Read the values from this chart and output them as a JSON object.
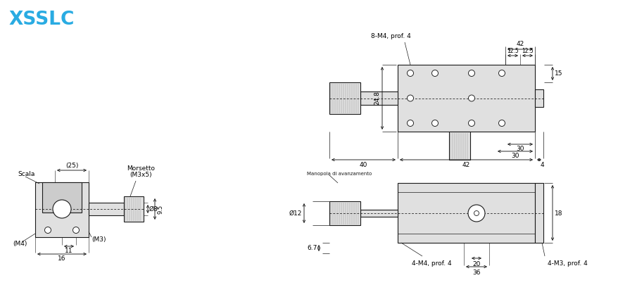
{
  "title": "XSSLC",
  "title_color": "#29ABE2",
  "bg_color": "#ffffff",
  "line_color": "#1a1a1a",
  "fill_light": "#e0e0e0",
  "fill_mid": "#cccccc",
  "annotations": {
    "top_label": "8-M4, prof. 4",
    "dim_42_top": "42",
    "dim_12_5_L": "12.5",
    "dim_12_5_R": "12.5",
    "dim_24_8": "24.8",
    "dim_15": "15",
    "dim_30a": "30",
    "dim_30b": "30",
    "dim_40": "40",
    "dim_42b": "42",
    "dim_4": "4",
    "manopola": "Manopola di avanzamento",
    "dim_phi12": "Ø12",
    "dim_18": "18",
    "dim_6_7": "6.7",
    "label_4M4": "4-M4, prof. 4",
    "dim_20": "20",
    "dim_36": "36",
    "label_4M3": "4-M3, prof. 4",
    "scala": "Scala",
    "dim_25": "(25)",
    "morsetto_line1": "Morsetto",
    "morsetto_line2": "(M3x5)",
    "dim_phi8": "Ø8",
    "dim_M4": "(M4)",
    "dim_11": "11",
    "dim_16": "16",
    "dim_M3": "(M3)",
    "dim_9_5": "9.5"
  }
}
